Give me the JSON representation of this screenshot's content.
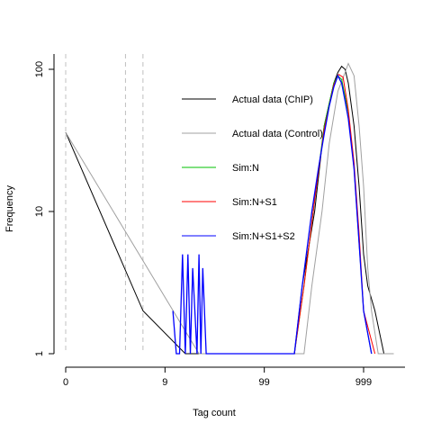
{
  "chart_data": {
    "type": "line",
    "xlabel": "Tag count",
    "ylabel": "Frequency",
    "x_scale": "log(1+x)",
    "y_scale": "log",
    "xlim": [
      0,
      2999
    ],
    "ylim": [
      1,
      110
    ],
    "x_ticks": [
      0,
      9,
      99,
      999
    ],
    "x_tick_labels": [
      "0",
      "9",
      "99",
      "999"
    ],
    "y_ticks": [
      1,
      10,
      100
    ],
    "y_tick_labels": [
      "1",
      "10",
      "100"
    ],
    "vlines": [
      0,
      3,
      5
    ],
    "vline_color": "#c0c0c0",
    "legend_position": "inside-top-center",
    "series": [
      {
        "name": "Actual data (ChIP)",
        "color": "#000000",
        "points": [
          [
            0,
            36
          ],
          [
            5,
            2
          ],
          [
            15,
            1
          ],
          [
            19,
            1
          ],
          [
            24,
            1
          ],
          [
            100,
            1
          ],
          [
            200,
            1
          ],
          [
            240,
            3
          ],
          [
            320,
            10
          ],
          [
            400,
            40
          ],
          [
            500,
            80
          ],
          [
            550,
            95
          ],
          [
            600,
            105
          ],
          [
            650,
            100
          ],
          [
            700,
            80
          ],
          [
            800,
            40
          ],
          [
            900,
            15
          ],
          [
            1000,
            5
          ],
          [
            1100,
            3
          ],
          [
            1300,
            2
          ],
          [
            1600,
            1
          ],
          [
            2000,
            1
          ]
        ]
      },
      {
        "name": "Actual data (Control)",
        "color": "#a0a0a0",
        "points": [
          [
            0,
            36
          ],
          [
            21,
            1
          ],
          [
            100,
            1
          ],
          [
            250,
            1
          ],
          [
            300,
            3
          ],
          [
            380,
            10
          ],
          [
            450,
            30
          ],
          [
            550,
            70
          ],
          [
            650,
            95
          ],
          [
            700,
            110
          ],
          [
            800,
            90
          ],
          [
            900,
            40
          ],
          [
            1000,
            15
          ],
          [
            1100,
            4
          ],
          [
            1200,
            2
          ],
          [
            1400,
            1
          ],
          [
            2000,
            1
          ]
        ]
      },
      {
        "name": "Sim:N",
        "color": "#00c000",
        "points": [
          [
            200,
            1
          ],
          [
            250,
            3
          ],
          [
            320,
            12
          ],
          [
            400,
            40
          ],
          [
            500,
            80
          ],
          [
            550,
            90
          ],
          [
            600,
            85
          ],
          [
            700,
            50
          ],
          [
            800,
            20
          ],
          [
            900,
            6
          ],
          [
            1000,
            2
          ],
          [
            1200,
            1
          ]
        ]
      },
      {
        "name": "Sim:N+S1",
        "color": "#ff0000",
        "points": [
          [
            200,
            1
          ],
          [
            250,
            3
          ],
          [
            320,
            12
          ],
          [
            400,
            38
          ],
          [
            500,
            78
          ],
          [
            560,
            92
          ],
          [
            620,
            88
          ],
          [
            700,
            52
          ],
          [
            800,
            22
          ],
          [
            900,
            7
          ],
          [
            1000,
            2
          ],
          [
            1300,
            1
          ]
        ]
      },
      {
        "name": "Sim:N+S1+S2",
        "color": "#0000ff",
        "points": [
          [
            11,
            2
          ],
          [
            12,
            1
          ],
          [
            13,
            1
          ],
          [
            14,
            5
          ],
          [
            15,
            1
          ],
          [
            16,
            5
          ],
          [
            17,
            1
          ],
          [
            18,
            4
          ],
          [
            20,
            1
          ],
          [
            21,
            5
          ],
          [
            22,
            1
          ],
          [
            23,
            4
          ],
          [
            25,
            1
          ],
          [
            200,
            1
          ],
          [
            240,
            3
          ],
          [
            300,
            10
          ],
          [
            350,
            20
          ],
          [
            400,
            35
          ],
          [
            450,
            55
          ],
          [
            500,
            75
          ],
          [
            550,
            90
          ],
          [
            600,
            80
          ],
          [
            650,
            60
          ],
          [
            700,
            45
          ],
          [
            800,
            20
          ],
          [
            900,
            6
          ],
          [
            1000,
            2
          ],
          [
            1200,
            1
          ]
        ]
      }
    ]
  }
}
